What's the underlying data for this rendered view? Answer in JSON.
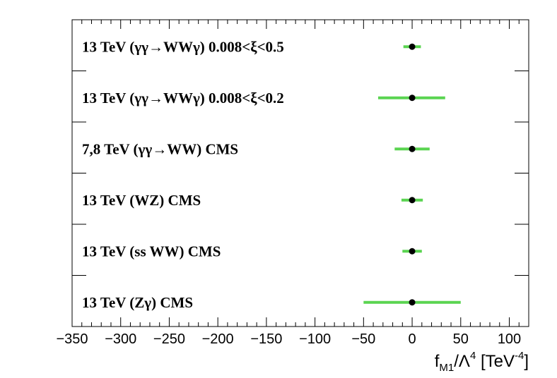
{
  "chart_data": {
    "type": "scatter",
    "xlim": [
      -350,
      120
    ],
    "x_ticks": [
      -350,
      -300,
      -250,
      -200,
      -150,
      -100,
      -50,
      0,
      50,
      100
    ],
    "xlabel": {
      "main": "f",
      "sub": "M1",
      "slash": "/",
      "lambda": "Λ",
      "lambda_exp": "4",
      "unit_open": "[TeV",
      "unit_exp": "-4",
      "unit_close": "]"
    },
    "colors": {
      "error_bar": "#5ad451",
      "point": "#000000"
    },
    "grid": false,
    "points": [
      {
        "label": "13 TeV (γγ→WWγ) 0.008<ξ<0.5",
        "value": 0,
        "low": -9,
        "high": 9
      },
      {
        "label": "13 TeV (γγ→WWγ) 0.008<ξ<0.2",
        "value": 0,
        "low": -35,
        "high": 34
      },
      {
        "label": "7,8 TeV (γγ→WW) CMS",
        "value": 0,
        "low": -18,
        "high": 18
      },
      {
        "label": "13 TeV (WZ) CMS",
        "value": 0,
        "low": -11,
        "high": 11
      },
      {
        "label": "13 TeV (ss WW) CMS",
        "value": 0,
        "low": -10,
        "high": 10
      },
      {
        "label": "13 TeV (Zγ) CMS",
        "value": 0,
        "low": -50,
        "high": 50
      }
    ]
  }
}
